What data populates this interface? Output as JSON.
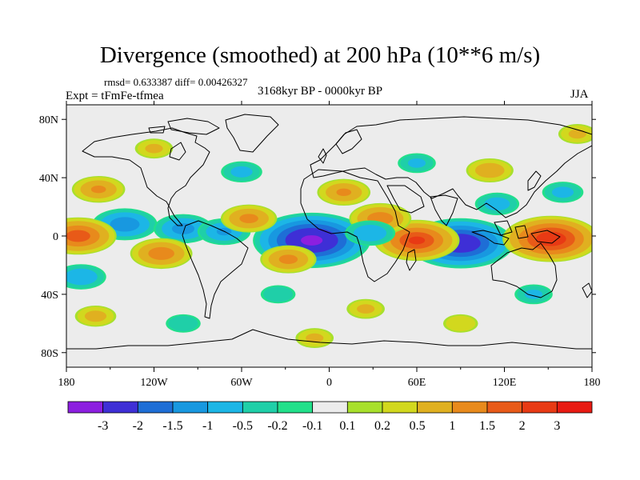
{
  "chart_data": {
    "type": "heatmap",
    "title": "Divergence (smoothed) at 200 hPa (10**6 m/s)",
    "stats_text": "rmsd= 0.633387 diff= 0.00426327",
    "period_text": "3168kyr BP - 0000kyr BP",
    "experiment_text": "Expt = tFmFe-tfmea",
    "season": "JJA",
    "x_axis": {
      "range": [
        -180,
        180
      ],
      "tick_labels": [
        "180",
        "120W",
        "60W",
        "0",
        "60E",
        "120E",
        "180"
      ],
      "tick_values": [
        -180,
        -120,
        -60,
        0,
        60,
        120,
        180
      ]
    },
    "y_axis": {
      "range": [
        -90,
        90
      ],
      "tick_labels": [
        "80N",
        "40N",
        "0",
        "40S",
        "80S"
      ],
      "tick_values": [
        80,
        40,
        0,
        -40,
        -80
      ]
    },
    "colorbar": {
      "labels": [
        "-3",
        "-2",
        "-1.5",
        "-1",
        "-0.5",
        "-0.2",
        "-0.1",
        "0.1",
        "0.2",
        "0.5",
        "1",
        "1.5",
        "2",
        "3"
      ],
      "levels": [
        -3,
        -2,
        -1.5,
        -1,
        -0.5,
        -0.2,
        -0.1,
        0.1,
        0.2,
        0.5,
        1,
        1.5,
        2,
        3
      ],
      "colors": [
        "#8c1fe0",
        "#3e2fd6",
        "#1e6ed6",
        "#1898e0",
        "#1cb6e6",
        "#1fcfa8",
        "#22e08a",
        "#ececec",
        "#a8e02c",
        "#d2d81e",
        "#e0b020",
        "#e88a1c",
        "#e85a18",
        "#e83a14",
        "#e81a12"
      ]
    },
    "anomalies": [
      {
        "lon": -12,
        "lat": -3,
        "value": -3.2
      },
      {
        "lon": 90,
        "lat": -5,
        "value": -2.8
      },
      {
        "lon": -140,
        "lat": 8,
        "value": -1.4
      },
      {
        "lon": -100,
        "lat": 5,
        "value": -1.2
      },
      {
        "lon": -72,
        "lat": 3,
        "value": -1.0
      },
      {
        "lon": 152,
        "lat": -2,
        "value": 2.5
      },
      {
        "lon": 60,
        "lat": -3,
        "value": 2.1
      },
      {
        "lon": -172,
        "lat": 0,
        "value": 1.8
      },
      {
        "lon": 35,
        "lat": 12,
        "value": 1.3
      },
      {
        "lon": -55,
        "lat": 12,
        "value": 1.1
      },
      {
        "lon": -28,
        "lat": -16,
        "value": 1.1
      },
      {
        "lon": -115,
        "lat": -12,
        "value": 1.3
      },
      {
        "lon": 10,
        "lat": 30,
        "value": 1.0
      },
      {
        "lon": -158,
        "lat": 32,
        "value": 1.0
      },
      {
        "lon": 110,
        "lat": 45,
        "value": 0.8
      },
      {
        "lon": 28,
        "lat": 2,
        "value": -0.9
      },
      {
        "lon": 115,
        "lat": 22,
        "value": -0.7
      },
      {
        "lon": -60,
        "lat": 44,
        "value": -0.6
      },
      {
        "lon": 160,
        "lat": 30,
        "value": -0.6
      },
      {
        "lon": 60,
        "lat": 50,
        "value": -0.5
      },
      {
        "lon": -170,
        "lat": -28,
        "value": -0.9
      },
      {
        "lon": -160,
        "lat": -55,
        "value": 0.6
      },
      {
        "lon": 140,
        "lat": -40,
        "value": -0.5
      },
      {
        "lon": -35,
        "lat": -40,
        "value": -0.4
      },
      {
        "lon": 25,
        "lat": -50,
        "value": 0.5
      },
      {
        "lon": -120,
        "lat": 60,
        "value": 0.5
      },
      {
        "lon": 170,
        "lat": 70,
        "value": 0.5
      },
      {
        "lon": 90,
        "lat": -60,
        "value": 0.4
      },
      {
        "lon": -10,
        "lat": -70,
        "value": 0.5
      },
      {
        "lon": -100,
        "lat": -60,
        "value": -0.4
      }
    ]
  }
}
